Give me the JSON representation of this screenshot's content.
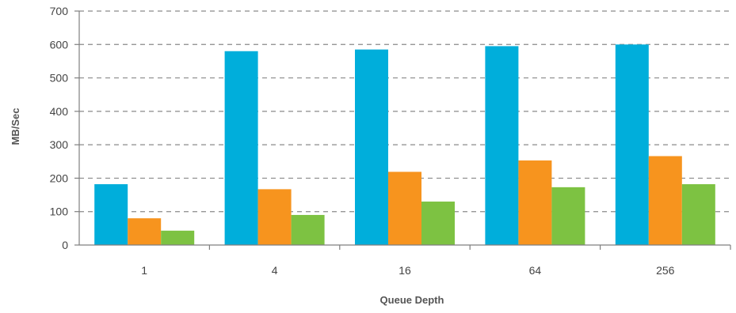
{
  "chart_data": {
    "type": "bar",
    "title": "",
    "xlabel": "Queue Depth",
    "ylabel": "MB/Sec",
    "categories": [
      "1",
      "4",
      "16",
      "64",
      "256"
    ],
    "ylim": [
      0,
      700
    ],
    "yticks": [
      0,
      100,
      200,
      300,
      400,
      500,
      600,
      700
    ],
    "grid": true,
    "legend": "none",
    "series": [
      {
        "color": "#00aedb",
        "values": [
          182,
          580,
          585,
          595,
          600
        ]
      },
      {
        "color": "#f7941e",
        "values": [
          80,
          167,
          219,
          253,
          266
        ]
      },
      {
        "color": "#7dc242",
        "values": [
          43,
          90,
          130,
          173,
          182
        ]
      }
    ]
  }
}
